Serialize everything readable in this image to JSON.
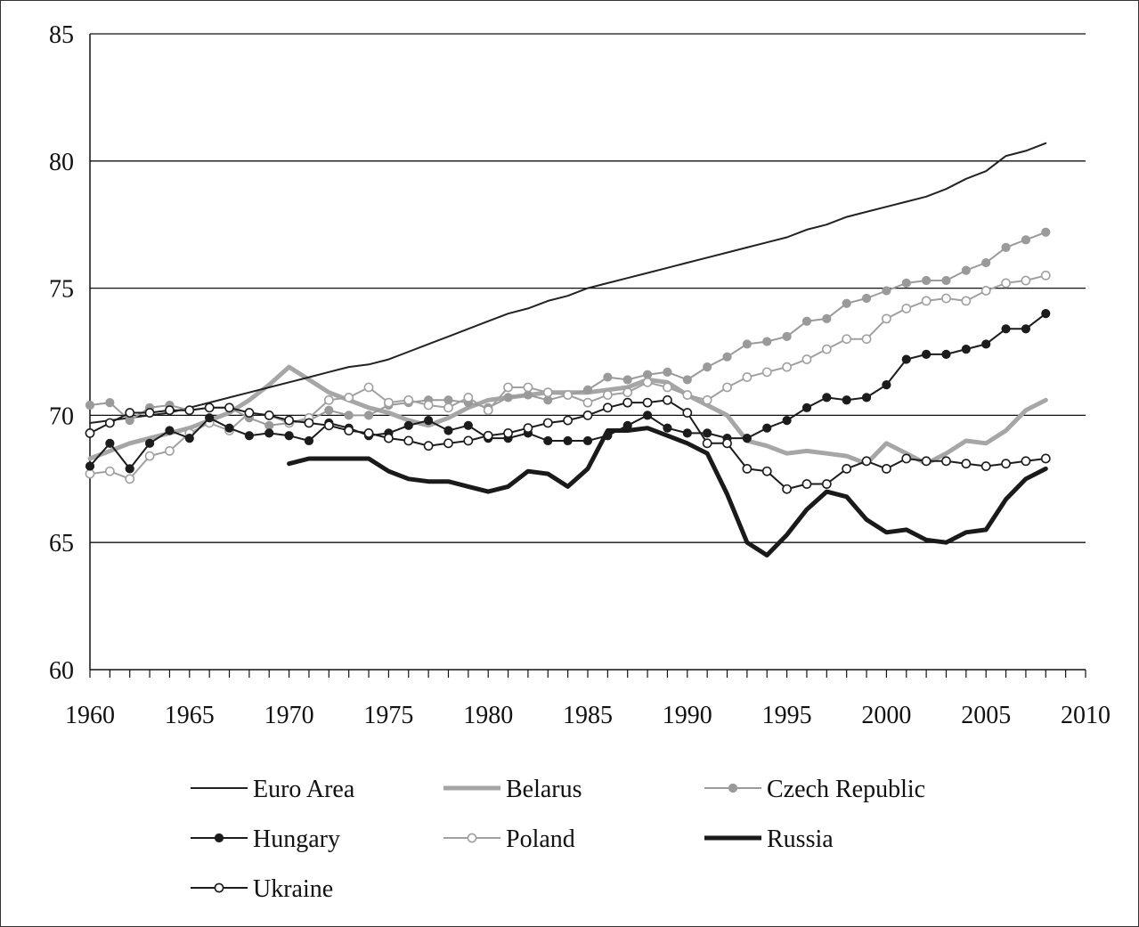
{
  "chart_data": {
    "type": "line",
    "title": "",
    "xlabel": "",
    "ylabel": "",
    "xlim": [
      1960,
      2010
    ],
    "ylim": [
      60,
      85
    ],
    "x_ticks": [
      "1960",
      "1965",
      "1970",
      "1975",
      "1980",
      "1985",
      "1990",
      "1995",
      "2000",
      "2005",
      "2010"
    ],
    "y_ticks": [
      "60",
      "65",
      "70",
      "75",
      "80",
      "85"
    ],
    "grid": "horizontal",
    "legend_position": "bottom",
    "series": [
      {
        "name": "Euro Area",
        "color": "#222222",
        "width": 2,
        "marker": "none",
        "x": [
          1960,
          1961,
          1962,
          1963,
          1964,
          1965,
          1966,
          1967,
          1968,
          1969,
          1970,
          1971,
          1972,
          1973,
          1974,
          1975,
          1976,
          1977,
          1978,
          1979,
          1980,
          1981,
          1982,
          1983,
          1984,
          1985,
          1986,
          1987,
          1988,
          1989,
          1990,
          1991,
          1992,
          1993,
          1994,
          1995,
          1996,
          1997,
          1998,
          1999,
          2000,
          2001,
          2002,
          2003,
          2004,
          2005,
          2006,
          2007,
          2008
        ],
        "y": [
          69.7,
          69.8,
          69.9,
          70.0,
          70.1,
          70.3,
          70.5,
          70.7,
          70.9,
          71.1,
          71.3,
          71.5,
          71.7,
          71.9,
          72.0,
          72.2,
          72.5,
          72.8,
          73.1,
          73.4,
          73.7,
          74.0,
          74.2,
          74.5,
          74.7,
          75.0,
          75.2,
          75.4,
          75.6,
          75.8,
          76.0,
          76.2,
          76.4,
          76.6,
          76.8,
          77.0,
          77.3,
          77.5,
          77.8,
          78.0,
          78.2,
          78.4,
          78.6,
          78.9,
          79.3,
          79.6,
          80.2,
          80.4,
          80.7
        ]
      },
      {
        "name": "Belarus",
        "color": "#a6a6a6",
        "width": 5,
        "marker": "none",
        "x": [
          1960,
          1961,
          1962,
          1963,
          1964,
          1965,
          1966,
          1967,
          1968,
          1969,
          1970,
          1971,
          1972,
          1973,
          1974,
          1975,
          1976,
          1977,
          1978,
          1979,
          1980,
          1981,
          1982,
          1983,
          1984,
          1985,
          1986,
          1987,
          1988,
          1989,
          1990,
          1991,
          1992,
          1993,
          1994,
          1995,
          1996,
          1997,
          1998,
          1999,
          2000,
          2001,
          2002,
          2003,
          2004,
          2005,
          2006,
          2007,
          2008
        ],
        "y": [
          68.3,
          68.6,
          68.9,
          69.1,
          69.3,
          69.5,
          69.8,
          70.1,
          70.6,
          71.2,
          71.9,
          71.4,
          70.9,
          70.6,
          70.3,
          70.1,
          69.8,
          69.6,
          69.9,
          70.3,
          70.6,
          70.7,
          70.8,
          70.9,
          70.9,
          70.9,
          71.0,
          71.1,
          71.4,
          71.3,
          70.8,
          70.4,
          70.0,
          69.0,
          68.8,
          68.5,
          68.6,
          68.5,
          68.4,
          68.1,
          68.9,
          68.5,
          68.1,
          68.5,
          69.0,
          68.9,
          69.4,
          70.2,
          70.6
        ]
      },
      {
        "name": "Czech Republic",
        "color": "#9a9a9a",
        "width": 2,
        "marker": "filled",
        "x": [
          1960,
          1961,
          1962,
          1963,
          1964,
          1965,
          1966,
          1967,
          1968,
          1969,
          1970,
          1971,
          1972,
          1973,
          1974,
          1975,
          1976,
          1977,
          1978,
          1979,
          1980,
          1981,
          1982,
          1983,
          1984,
          1985,
          1986,
          1987,
          1988,
          1989,
          1990,
          1991,
          1992,
          1993,
          1994,
          1995,
          1996,
          1997,
          1998,
          1999,
          2000,
          2001,
          2002,
          2003,
          2004,
          2005,
          2006,
          2007,
          2008
        ],
        "y": [
          70.4,
          70.5,
          69.8,
          70.3,
          70.4,
          70.2,
          70.3,
          70.3,
          69.9,
          69.6,
          69.7,
          69.8,
          70.2,
          70.0,
          70.0,
          70.4,
          70.5,
          70.6,
          70.6,
          70.5,
          70.3,
          70.7,
          70.8,
          70.6,
          70.8,
          71.0,
          71.5,
          71.4,
          71.6,
          71.7,
          71.4,
          71.9,
          72.3,
          72.8,
          72.9,
          73.1,
          73.7,
          73.8,
          74.4,
          74.6,
          74.9,
          75.2,
          75.3,
          75.3,
          75.7,
          76.0,
          76.6,
          76.9,
          77.2
        ]
      },
      {
        "name": "Hungary",
        "color": "#1c1c1c",
        "width": 2,
        "marker": "filled",
        "x": [
          1960,
          1961,
          1962,
          1963,
          1964,
          1965,
          1966,
          1967,
          1968,
          1969,
          1970,
          1971,
          1972,
          1973,
          1974,
          1975,
          1976,
          1977,
          1978,
          1979,
          1980,
          1981,
          1982,
          1983,
          1984,
          1985,
          1986,
          1987,
          1988,
          1989,
          1990,
          1991,
          1992,
          1993,
          1994,
          1995,
          1996,
          1997,
          1998,
          1999,
          2000,
          2001,
          2002,
          2003,
          2004,
          2005,
          2006,
          2007,
          2008
        ],
        "y": [
          68.0,
          68.9,
          67.9,
          68.9,
          69.4,
          69.1,
          69.9,
          69.5,
          69.2,
          69.3,
          69.2,
          69.0,
          69.7,
          69.5,
          69.2,
          69.3,
          69.6,
          69.8,
          69.4,
          69.6,
          69.1,
          69.1,
          69.3,
          69.0,
          69.0,
          69.0,
          69.2,
          69.6,
          70.0,
          69.5,
          69.3,
          69.3,
          69.1,
          69.1,
          69.5,
          69.8,
          70.3,
          70.7,
          70.6,
          70.7,
          71.2,
          72.2,
          72.4,
          72.4,
          72.6,
          72.8,
          73.4,
          73.4,
          74.0
        ]
      },
      {
        "name": "Poland",
        "color": "#a0a0a0",
        "width": 2,
        "marker": "open",
        "x": [
          1960,
          1961,
          1962,
          1963,
          1964,
          1965,
          1966,
          1967,
          1968,
          1969,
          1970,
          1971,
          1972,
          1973,
          1974,
          1975,
          1976,
          1977,
          1978,
          1979,
          1980,
          1981,
          1982,
          1983,
          1984,
          1985,
          1986,
          1987,
          1988,
          1989,
          1990,
          1991,
          1992,
          1993,
          1994,
          1995,
          1996,
          1997,
          1998,
          1999,
          2000,
          2001,
          2002,
          2003,
          2004,
          2005,
          2006,
          2007,
          2008
        ],
        "y": [
          67.7,
          67.8,
          67.5,
          68.4,
          68.6,
          69.3,
          69.7,
          69.4,
          70.1,
          70.0,
          69.7,
          69.9,
          70.6,
          70.7,
          71.1,
          70.5,
          70.6,
          70.4,
          70.3,
          70.7,
          70.2,
          71.1,
          71.1,
          70.9,
          70.8,
          70.5,
          70.8,
          70.9,
          71.3,
          71.1,
          70.8,
          70.6,
          71.1,
          71.5,
          71.7,
          71.9,
          72.2,
          72.6,
          73.0,
          73.0,
          73.8,
          74.2,
          74.5,
          74.6,
          74.5,
          74.9,
          75.2,
          75.3,
          75.5
        ]
      },
      {
        "name": "Russia",
        "color": "#1a1a1a",
        "width": 5,
        "marker": "none",
        "x": [
          1970,
          1971,
          1972,
          1973,
          1974,
          1975,
          1976,
          1977,
          1978,
          1979,
          1980,
          1981,
          1982,
          1983,
          1984,
          1985,
          1986,
          1987,
          1988,
          1989,
          1990,
          1991,
          1992,
          1993,
          1994,
          1995,
          1996,
          1997,
          1998,
          1999,
          2000,
          2001,
          2002,
          2003,
          2004,
          2005,
          2006,
          2007,
          2008
        ],
        "y": [
          68.1,
          68.3,
          68.3,
          68.3,
          68.3,
          67.8,
          67.5,
          67.4,
          67.4,
          67.2,
          67.0,
          67.2,
          67.8,
          67.7,
          67.2,
          67.9,
          69.4,
          69.4,
          69.5,
          69.2,
          68.9,
          68.5,
          66.9,
          65.0,
          64.5,
          65.3,
          66.3,
          67.0,
          66.8,
          65.9,
          65.4,
          65.5,
          65.1,
          65.0,
          65.4,
          65.5,
          66.7,
          67.5,
          67.9
        ]
      },
      {
        "name": "Ukraine",
        "color": "#1c1c1c",
        "width": 2,
        "marker": "open",
        "x": [
          1960,
          1961,
          1962,
          1963,
          1964,
          1965,
          1966,
          1967,
          1968,
          1969,
          1970,
          1971,
          1972,
          1973,
          1974,
          1975,
          1976,
          1977,
          1978,
          1979,
          1980,
          1981,
          1982,
          1983,
          1984,
          1985,
          1986,
          1987,
          1988,
          1989,
          1990,
          1991,
          1992,
          1993,
          1994,
          1995,
          1996,
          1997,
          1998,
          1999,
          2000,
          2001,
          2002,
          2003,
          2004,
          2005,
          2006,
          2007,
          2008
        ],
        "y": [
          69.3,
          69.7,
          70.1,
          70.1,
          70.2,
          70.2,
          70.3,
          70.3,
          70.1,
          70.0,
          69.8,
          69.7,
          69.6,
          69.4,
          69.3,
          69.1,
          69.0,
          68.8,
          68.9,
          69.0,
          69.2,
          69.3,
          69.5,
          69.7,
          69.8,
          70.0,
          70.3,
          70.5,
          70.5,
          70.6,
          70.1,
          68.9,
          68.9,
          67.9,
          67.8,
          67.1,
          67.3,
          67.3,
          67.9,
          68.2,
          67.9,
          68.3,
          68.2,
          68.2,
          68.1,
          68.0,
          68.1,
          68.2,
          68.3
        ]
      }
    ]
  }
}
